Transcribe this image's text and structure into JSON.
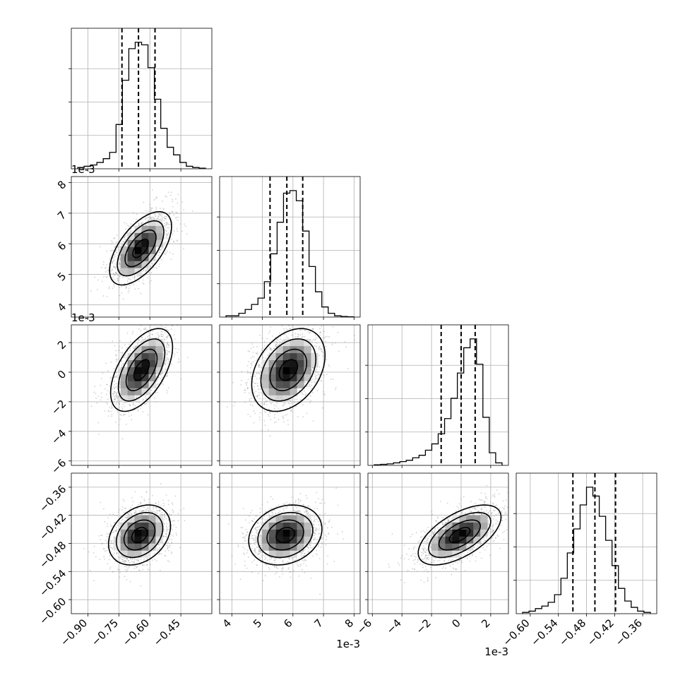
{
  "chart_data": {
    "type": "corner",
    "axis_offset_label": "1e-3",
    "params": [
      {
        "range": [
          -0.98,
          -0.3
        ],
        "ticks": [
          -0.9,
          -0.75,
          -0.6,
          -0.45
        ],
        "tick_labels": [
          "−0.90",
          "−0.75",
          "−0.60",
          "−0.45"
        ],
        "quantiles": [
          -0.735,
          -0.655,
          -0.575
        ],
        "hist": [
          0.01,
          0.02,
          0.03,
          0.05,
          0.08,
          0.13,
          0.35,
          0.7,
          0.95,
          1.0,
          0.98,
          0.8,
          0.55,
          0.32,
          0.17,
          0.11,
          0.05,
          0.02,
          0.01,
          0.005
        ]
      },
      {
        "range": [
          3.6,
          8.2
        ],
        "ticks": [
          4,
          5,
          6,
          7,
          8
        ],
        "tick_labels": [
          "4",
          "5",
          "6",
          "7",
          "8"
        ],
        "offset": true,
        "quantiles": [
          5.25,
          5.8,
          6.32
        ],
        "hist": [
          0.01,
          0.01,
          0.03,
          0.06,
          0.1,
          0.15,
          0.28,
          0.5,
          0.75,
          0.98,
          1.0,
          0.92,
          0.68,
          0.4,
          0.2,
          0.08,
          0.03,
          0.01,
          0.005,
          0.002
        ]
      },
      {
        "range": [
          -6.3,
          3.2
        ],
        "ticks": [
          -6,
          -4,
          -2,
          0,
          2
        ],
        "tick_labels": [
          "−6",
          "−4",
          "−2",
          "0",
          "2"
        ],
        "offset": true,
        "quantiles": [
          -1.35,
          0.0,
          0.95
        ],
        "hist": [
          0.005,
          0.008,
          0.012,
          0.02,
          0.03,
          0.04,
          0.06,
          0.08,
          0.12,
          0.17,
          0.25,
          0.37,
          0.53,
          0.73,
          0.93,
          1.0,
          0.8,
          0.38,
          0.1,
          0.02
        ]
      },
      {
        "range": [
          -0.63,
          -0.33
        ],
        "ticks": [
          -0.6,
          -0.54,
          -0.48,
          -0.42,
          -0.36
        ],
        "tick_labels": [
          "−0.60",
          "−0.54",
          "−0.48",
          "−0.42",
          "−0.36"
        ],
        "quantiles": [
          -0.509,
          -0.462,
          -0.418
        ],
        "hist": [
          0.01,
          0.02,
          0.04,
          0.06,
          0.09,
          0.15,
          0.28,
          0.48,
          0.67,
          0.86,
          1.0,
          0.93,
          0.77,
          0.58,
          0.38,
          0.2,
          0.1,
          0.05,
          0.02,
          0.01
        ]
      }
    ],
    "pairs": [
      {
        "row": 1,
        "col": 0,
        "center": [
          -0.645,
          5.85
        ],
        "sd": [
          0.075,
          0.6
        ],
        "rho": 0.6
      },
      {
        "row": 2,
        "col": 0,
        "center": [
          -0.64,
          0.15
        ],
        "sd": [
          0.075,
          1.4
        ],
        "rho": 0.55
      },
      {
        "row": 2,
        "col": 1,
        "center": [
          5.85,
          0.15
        ],
        "sd": [
          0.6,
          1.4
        ],
        "rho": 0.35
      },
      {
        "row": 3,
        "col": 0,
        "center": [
          -0.65,
          -0.462
        ],
        "sd": [
          0.075,
          0.032
        ],
        "rho": 0.3
      },
      {
        "row": 3,
        "col": 1,
        "center": [
          5.75,
          -0.462
        ],
        "sd": [
          0.6,
          0.032
        ],
        "rho": 0.2
      },
      {
        "row": 3,
        "col": 2,
        "center": [
          -0.1,
          -0.462
        ],
        "sd": [
          1.4,
          0.032
        ],
        "rho": 0.6
      }
    ],
    "grid": true
  }
}
